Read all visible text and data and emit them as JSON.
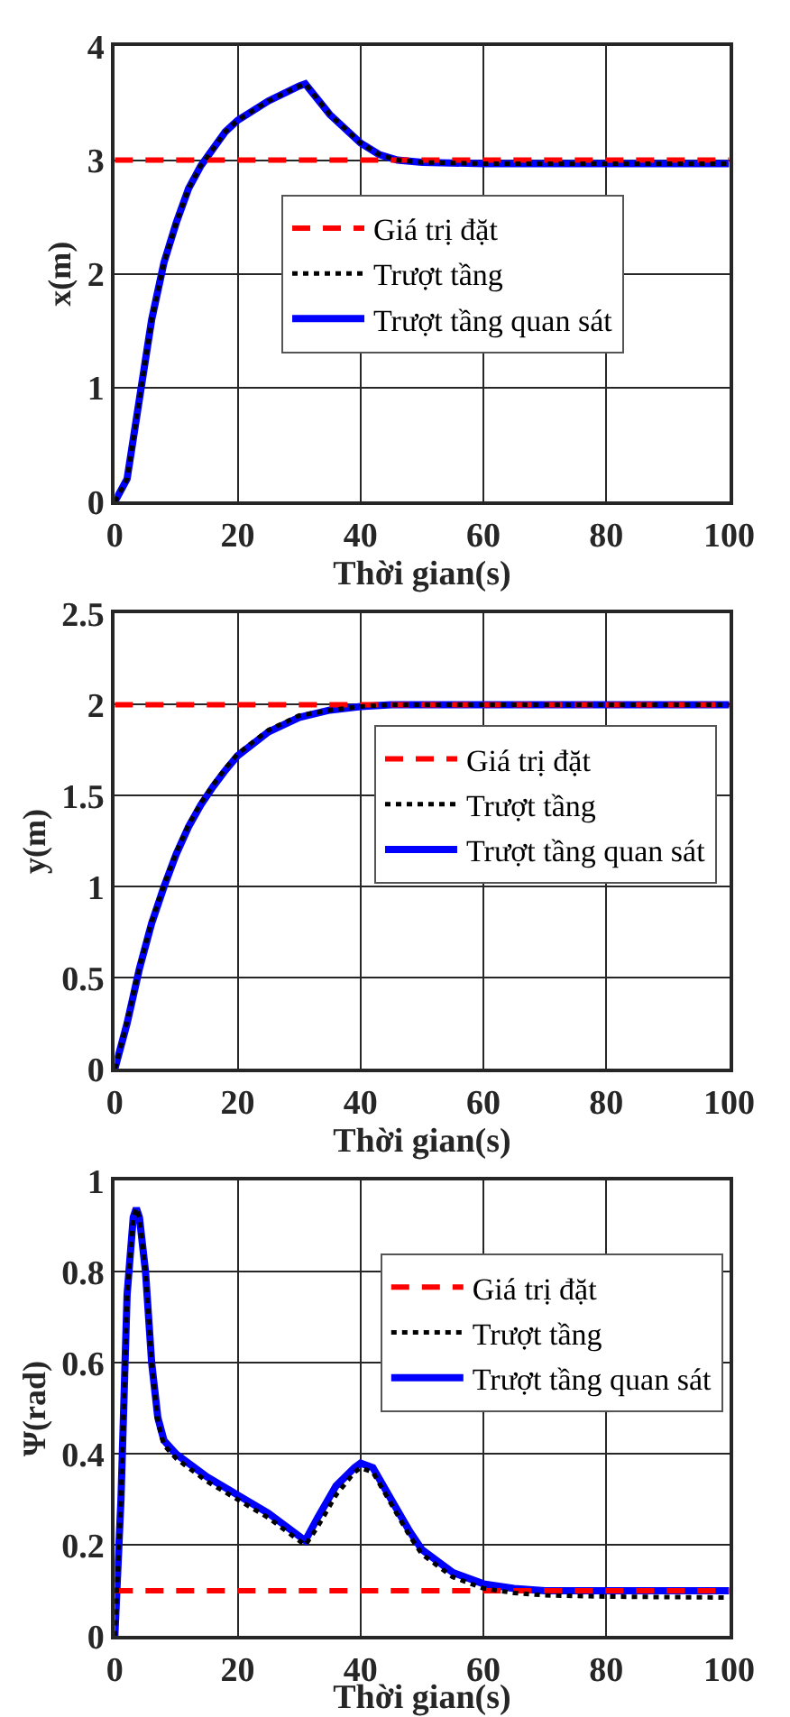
{
  "chart_data": [
    {
      "type": "line",
      "xlabel": "Thời gian(s)",
      "ylabel": "x(m)",
      "xlim": [
        0,
        100
      ],
      "xticks": [
        0,
        20,
        40,
        60,
        80,
        100
      ],
      "ylim": [
        0,
        4
      ],
      "yticks": [
        0,
        1,
        2,
        3,
        4
      ],
      "grid": true,
      "legend": "center",
      "x": [
        0,
        2,
        4,
        6,
        8,
        10,
        12,
        14,
        16,
        18,
        20,
        25,
        30,
        31,
        35,
        40,
        43,
        46,
        50,
        60,
        80,
        100
      ],
      "series": [
        {
          "name": "Giá trị đặt",
          "color": "#ff0000",
          "line_style": "dashed",
          "values": [
            3,
            3,
            3,
            3,
            3,
            3,
            3,
            3,
            3,
            3,
            3,
            3,
            3,
            3,
            3,
            3,
            3,
            3,
            3,
            3,
            3,
            3
          ]
        },
        {
          "name": "Trượt tầng",
          "color": "#000000",
          "line_style": "dotted",
          "values": [
            0,
            0.2,
            0.9,
            1.6,
            2.1,
            2.45,
            2.75,
            2.95,
            3.1,
            3.25,
            3.35,
            3.52,
            3.65,
            3.67,
            3.4,
            3.15,
            3.05,
            3.0,
            2.98,
            2.97,
            2.97,
            2.97
          ]
        },
        {
          "name": "Trượt tầng quan sát",
          "color": "#0000ff",
          "line_style": "solid",
          "values": [
            0,
            0.2,
            0.9,
            1.6,
            2.1,
            2.45,
            2.75,
            2.95,
            3.1,
            3.25,
            3.35,
            3.52,
            3.65,
            3.67,
            3.4,
            3.15,
            3.05,
            3.0,
            2.98,
            2.97,
            2.97,
            2.97
          ]
        }
      ]
    },
    {
      "type": "line",
      "xlabel": "Thời gian(s)",
      "ylabel": "y(m)",
      "xlim": [
        0,
        100
      ],
      "xticks": [
        0,
        20,
        40,
        60,
        80,
        100
      ],
      "ylim": [
        0,
        2.5
      ],
      "yticks": [
        0,
        0.5,
        1,
        1.5,
        2,
        2.5
      ],
      "grid": true,
      "legend": "center right",
      "x": [
        0,
        2,
        4,
        6,
        8,
        10,
        12,
        14,
        16,
        18,
        20,
        25,
        30,
        35,
        40,
        45,
        60,
        80,
        100
      ],
      "series": [
        {
          "name": "Giá trị đặt",
          "color": "#ff0000",
          "line_style": "dashed",
          "values": [
            2,
            2,
            2,
            2,
            2,
            2,
            2,
            2,
            2,
            2,
            2,
            2,
            2,
            2,
            2,
            2,
            2,
            2,
            2
          ]
        },
        {
          "name": "Trượt tầng",
          "color": "#000000",
          "line_style": "dotted",
          "values": [
            0,
            0.26,
            0.56,
            0.81,
            1.01,
            1.19,
            1.34,
            1.46,
            1.56,
            1.65,
            1.73,
            1.86,
            1.94,
            1.97,
            1.99,
            2.0,
            2.0,
            2.0,
            2.0
          ]
        },
        {
          "name": "Trượt tầng quan sát",
          "color": "#0000ff",
          "line_style": "solid",
          "values": [
            0,
            0.25,
            0.55,
            0.8,
            1.0,
            1.18,
            1.33,
            1.45,
            1.55,
            1.64,
            1.72,
            1.85,
            1.93,
            1.97,
            1.99,
            2.0,
            2.0,
            2.0,
            2.0
          ]
        }
      ]
    },
    {
      "type": "line",
      "xlabel": "Thời gian(s)",
      "ylabel": "Ψ(rad)",
      "xlim": [
        0,
        100
      ],
      "xticks": [
        0,
        20,
        40,
        60,
        80,
        100
      ],
      "ylim": [
        0,
        1
      ],
      "yticks": [
        0,
        0.2,
        0.4,
        0.6,
        0.8,
        1
      ],
      "grid": true,
      "legend": "top right",
      "x": [
        0,
        1,
        2,
        3,
        3.5,
        4,
        5,
        6,
        7,
        8,
        10,
        15,
        20,
        25,
        30,
        31,
        33,
        36,
        39,
        40,
        42,
        45,
        48,
        50,
        55,
        60,
        65,
        70,
        80,
        100
      ],
      "series": [
        {
          "name": "Giá trị đặt",
          "color": "#ff0000",
          "line_style": "dashed",
          "values": [
            0.1,
            0.1,
            0.1,
            0.1,
            0.1,
            0.1,
            0.1,
            0.1,
            0.1,
            0.1,
            0.1,
            0.1,
            0.1,
            0.1,
            0.1,
            0.1,
            0.1,
            0.1,
            0.1,
            0.1,
            0.1,
            0.1,
            0.1,
            0.1,
            0.1,
            0.1,
            0.1,
            0.1,
            0.1,
            0.1
          ]
        },
        {
          "name": "Trượt tầng",
          "color": "#000000",
          "line_style": "dotted",
          "values": [
            0,
            0.3,
            0.75,
            0.92,
            0.94,
            0.92,
            0.8,
            0.6,
            0.47,
            0.42,
            0.39,
            0.34,
            0.3,
            0.26,
            0.21,
            0.2,
            0.24,
            0.31,
            0.36,
            0.37,
            0.36,
            0.29,
            0.22,
            0.18,
            0.13,
            0.105,
            0.095,
            0.09,
            0.087,
            0.085
          ]
        },
        {
          "name": "Trượt tầng quan sát",
          "color": "#0000ff",
          "line_style": "solid",
          "values": [
            0,
            0.3,
            0.75,
            0.92,
            0.94,
            0.92,
            0.8,
            0.6,
            0.48,
            0.43,
            0.4,
            0.35,
            0.31,
            0.27,
            0.22,
            0.21,
            0.26,
            0.33,
            0.37,
            0.38,
            0.37,
            0.3,
            0.23,
            0.19,
            0.14,
            0.115,
            0.105,
            0.1,
            0.1,
            0.1
          ]
        }
      ]
    }
  ]
}
